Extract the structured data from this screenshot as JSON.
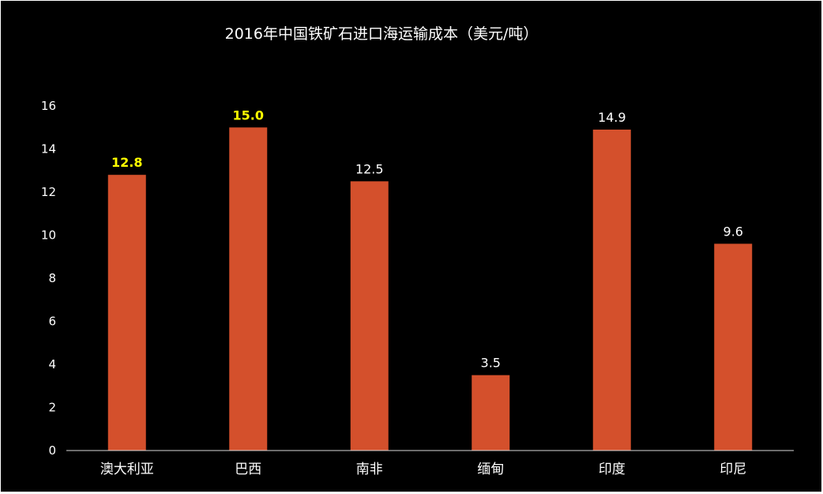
{
  "chart_data": {
    "type": "bar",
    "title": "2016年中国铁矿石进口海运输成本（美元/吨）",
    "categories": [
      "澳大利亚",
      "巴西",
      "南非",
      "缅甸",
      "印度",
      "印尼"
    ],
    "values": [
      12.8,
      15.0,
      12.5,
      3.5,
      14.9,
      9.6
    ],
    "value_labels": [
      "12.8",
      "15.0",
      "12.5",
      "3.5",
      "14.9",
      "9.6"
    ],
    "highlighted": [
      true,
      true,
      false,
      false,
      false,
      false
    ],
    "y_ticks": [
      "0",
      "2",
      "4",
      "6",
      "8",
      "10",
      "12",
      "14",
      "16"
    ],
    "ylim": [
      0,
      16
    ],
    "xlabel": "",
    "ylabel": "",
    "grid": false,
    "legend": "none",
    "colors": {
      "background": "#000000",
      "bar": "#d4502c",
      "label_default": "#ffffff",
      "label_highlight": "#ffff00",
      "axis_line": "#d9d9d9"
    }
  }
}
